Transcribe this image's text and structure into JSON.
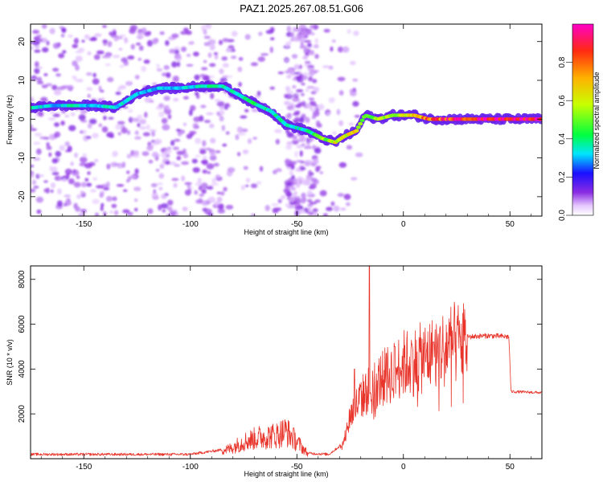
{
  "figure": {
    "title": "PAZ1.2025.267.08.51.G06"
  },
  "chart_data": [
    {
      "type": "heatmap",
      "xlabel": "Height of straight line (km)",
      "ylabel": "Frequency (Hz)",
      "xlim": [
        -175,
        65
      ],
      "ylim": [
        -25,
        24.5
      ],
      "xticks": [
        -150,
        -100,
        -50,
        0,
        50
      ],
      "yticks": [
        -20,
        -10,
        0,
        10,
        20
      ],
      "colorbar": {
        "label": "Normalized spectral amplitude",
        "range": [
          0,
          1
        ],
        "ticks": [
          0.0,
          0.2,
          0.4,
          0.6,
          0.8
        ],
        "tick_labels": [
          "0.0",
          "0.2",
          "0.4",
          "0.6",
          "0.8"
        ]
      },
      "ridge": [
        {
          "x": -173,
          "f": 3,
          "a": 0.35
        },
        {
          "x": -165,
          "f": 3.5,
          "a": 0.3
        },
        {
          "x": -155,
          "f": 3.5,
          "a": 0.35
        },
        {
          "x": -145,
          "f": 3.5,
          "a": 0.3
        },
        {
          "x": -135,
          "f": 3,
          "a": 0.35
        },
        {
          "x": -125,
          "f": 6.5,
          "a": 0.3
        },
        {
          "x": -115,
          "f": 8,
          "a": 0.3
        },
        {
          "x": -105,
          "f": 8,
          "a": 0.3
        },
        {
          "x": -95,
          "f": 8.5,
          "a": 0.35
        },
        {
          "x": -85,
          "f": 8.5,
          "a": 0.35
        },
        {
          "x": -78,
          "f": 6.5,
          "a": 0.35
        },
        {
          "x": -70,
          "f": 4,
          "a": 0.4
        },
        {
          "x": -62,
          "f": 2,
          "a": 0.35
        },
        {
          "x": -55,
          "f": -1.5,
          "a": 0.35
        },
        {
          "x": -45,
          "f": -3,
          "a": 0.35
        },
        {
          "x": -38,
          "f": -5,
          "a": 0.5
        },
        {
          "x": -32,
          "f": -6,
          "a": 0.6
        },
        {
          "x": -28,
          "f": -4.5,
          "a": 0.6
        },
        {
          "x": -22,
          "f": -3,
          "a": 0.65
        },
        {
          "x": -18,
          "f": 1,
          "a": 0.5
        },
        {
          "x": -12,
          "f": 0,
          "a": 0.55
        },
        {
          "x": -5,
          "f": 1,
          "a": 0.55
        },
        {
          "x": 5,
          "f": 1,
          "a": 0.65
        },
        {
          "x": 12,
          "f": 0,
          "a": 0.8
        },
        {
          "x": 20,
          "f": 0,
          "a": 0.85
        },
        {
          "x": 30,
          "f": 0,
          "a": 0.9
        },
        {
          "x": 40,
          "f": 0,
          "a": 0.95
        },
        {
          "x": 50,
          "f": 0,
          "a": 0.95
        },
        {
          "x": 65,
          "f": 0,
          "a": 0.95
        }
      ]
    },
    {
      "type": "line",
      "xlabel": "Height of straight line (km)",
      "ylabel": "SNR (10 * v/v)",
      "xlim": [
        -175,
        65
      ],
      "ylim": [
        0,
        8600
      ],
      "xticks": [
        -150,
        -100,
        -50,
        0,
        50
      ],
      "yticks": [
        2000,
        4000,
        6000,
        8000
      ],
      "color": "#e8342a",
      "envelope": [
        {
          "x": -175,
          "y": 200
        },
        {
          "x": -100,
          "y": 200
        },
        {
          "x": -82,
          "y": 450
        },
        {
          "x": -75,
          "y": 800
        },
        {
          "x": -68,
          "y": 1000
        },
        {
          "x": -60,
          "y": 1100
        },
        {
          "x": -55,
          "y": 1300
        },
        {
          "x": -50,
          "y": 800
        },
        {
          "x": -45,
          "y": 250
        },
        {
          "x": -35,
          "y": 200
        },
        {
          "x": -28,
          "y": 700
        },
        {
          "x": -25,
          "y": 2000
        },
        {
          "x": -20,
          "y": 2800
        },
        {
          "x": -15,
          "y": 3300
        },
        {
          "x": -10,
          "y": 3700
        },
        {
          "x": -5,
          "y": 4000
        },
        {
          "x": 0,
          "y": 4400
        },
        {
          "x": 5,
          "y": 4500
        },
        {
          "x": 10,
          "y": 4700
        },
        {
          "x": 15,
          "y": 4900
        },
        {
          "x": 20,
          "y": 5200
        },
        {
          "x": 25,
          "y": 5350
        },
        {
          "x": 30,
          "y": 5450
        },
        {
          "x": 40,
          "y": 5500
        },
        {
          "x": 49.5,
          "y": 5450
        },
        {
          "x": 50.5,
          "y": 3000
        },
        {
          "x": 65,
          "y": 2950
        }
      ],
      "spikes": [
        {
          "x": -16,
          "y": 8600
        },
        {
          "x": -23,
          "y": 4000
        },
        {
          "x": -4,
          "y": 5000
        },
        {
          "x": -8,
          "y": 4700
        },
        {
          "x": 4,
          "y": 5100
        },
        {
          "x": 10,
          "y": 5150
        },
        {
          "x": 14,
          "y": 5200
        }
      ]
    }
  ]
}
